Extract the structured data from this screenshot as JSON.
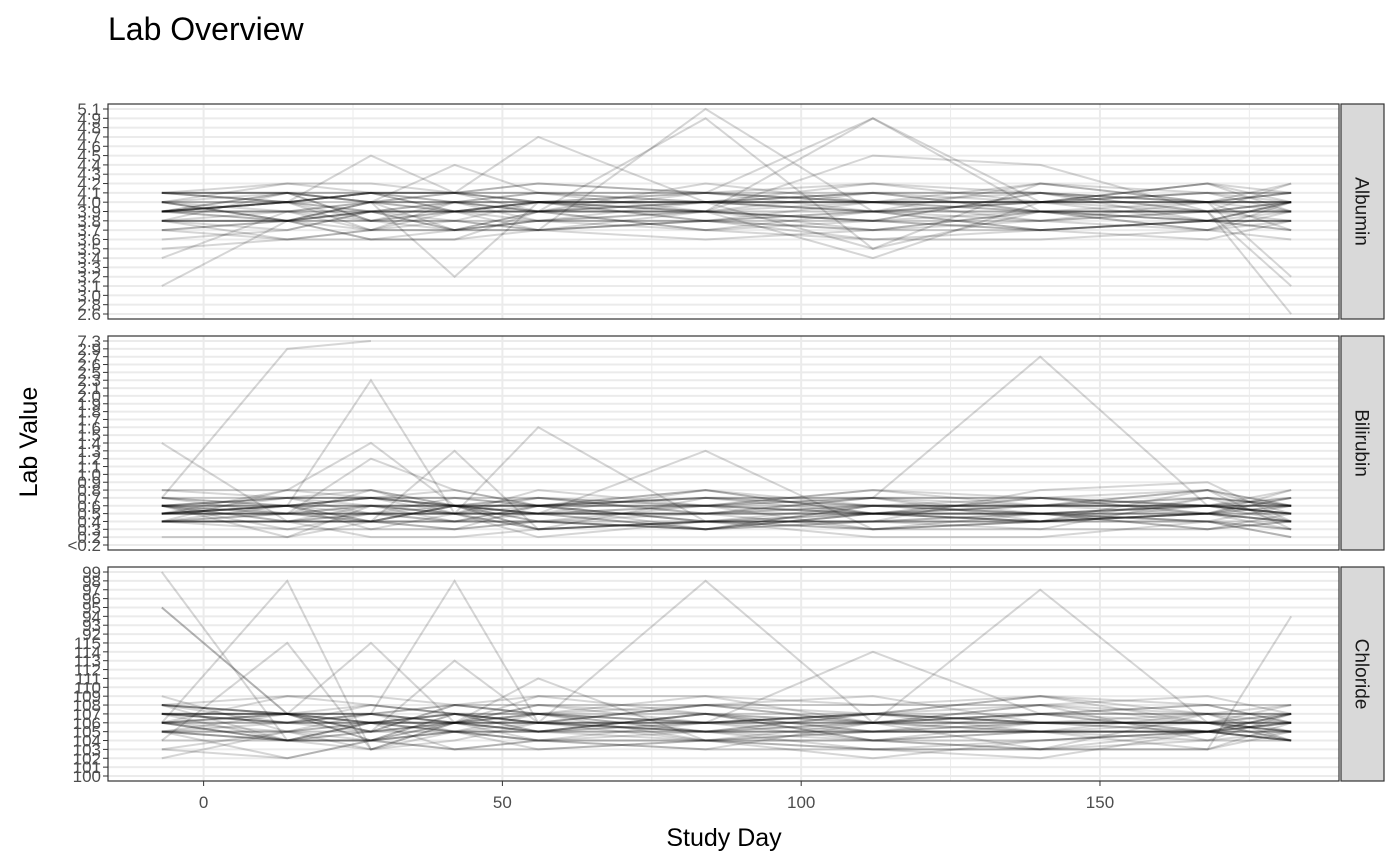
{
  "chart_data": {
    "type": "line",
    "title": "Lab Overview",
    "xlabel": "Study Day",
    "ylabel": "Lab Value",
    "x_ticks": [
      0,
      50,
      100,
      150
    ],
    "xlim": [
      -16,
      190
    ],
    "visits": [
      -7,
      14,
      28,
      42,
      56,
      84,
      112,
      140,
      168,
      182
    ],
    "grid": true,
    "line_color": "#000000",
    "strip_fill": "#d9d9d9",
    "panel_border": "#333333",
    "grid_color": "#ebebeb",
    "subjects": 45,
    "panels": [
      {
        "name": "Albumin",
        "y_ticks": [
          "2.6",
          "2.8",
          "3.0",
          "3.1",
          "3.2",
          "3.3",
          "3.4",
          "3.5",
          "3.6",
          "3.7",
          "3.8",
          "3.9",
          "4.0",
          "4.1",
          "4.2",
          "4.3",
          "4.4",
          "4.5",
          "4.6",
          "4.7",
          "4.8",
          "4.9",
          "5.1"
        ],
        "center_level": 11
      },
      {
        "name": "Bilirubin",
        "y_ticks": [
          "<0.2",
          "0.2",
          "0.3",
          "0.4",
          "0.5",
          "0.6",
          "0.7",
          "0.8",
          "0.9",
          "1.0",
          "1.1",
          "1.2",
          "1.3",
          "1.4",
          "1.5",
          "1.6",
          "1.7",
          "1.8",
          "1.9",
          "2.0",
          "2.1",
          "2.3",
          "2.5",
          "2.6",
          "2.7",
          "2.9",
          "7.3"
        ],
        "center_level": 4
      },
      {
        "name": "Chloride",
        "y_ticks": [
          "100",
          "101",
          "102",
          "103",
          "104",
          "105",
          "106",
          "107",
          "108",
          "109",
          "110",
          "111",
          "112",
          "113",
          "114",
          "115",
          "92",
          "93",
          "94",
          "95",
          "96",
          "97",
          "98",
          "99"
        ],
        "center_level": 6
      }
    ]
  }
}
